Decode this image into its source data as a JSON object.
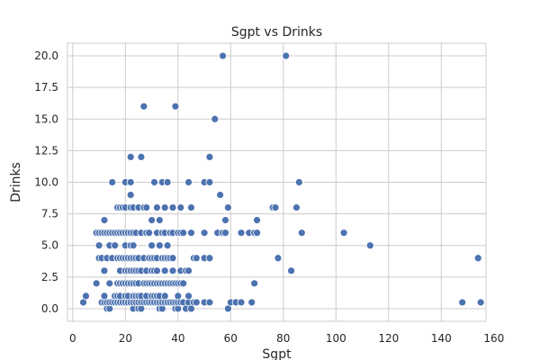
{
  "chart_data": {
    "type": "scatter",
    "title": "Sgpt vs Drinks",
    "xlabel": "Sgpt",
    "ylabel": "Drinks",
    "xlim": [
      -2,
      157
    ],
    "ylim": [
      -1,
      21
    ],
    "xticks": [
      0,
      20,
      40,
      60,
      80,
      100,
      120,
      140,
      160
    ],
    "xtick_labels": [
      "0",
      "20",
      "40",
      "60",
      "80",
      "100",
      "120",
      "140",
      "160"
    ],
    "yticks": [
      0,
      2.5,
      5,
      7.5,
      10,
      12.5,
      15,
      17.5,
      20
    ],
    "ytick_labels": [
      "0.0",
      "2.5",
      "5.0",
      "7.5",
      "10.0",
      "12.5",
      "15.0",
      "17.5",
      "20.0"
    ],
    "grid": true,
    "marker_color": "#4c72b0",
    "points": [
      [
        4,
        0.5
      ],
      [
        5,
        1
      ],
      [
        9,
        2
      ],
      [
        9,
        6
      ],
      [
        10,
        4
      ],
      [
        10,
        5
      ],
      [
        10,
        6
      ],
      [
        11,
        0.5
      ],
      [
        11,
        4
      ],
      [
        11,
        6
      ],
      [
        12,
        0.5
      ],
      [
        12,
        1
      ],
      [
        12,
        3
      ],
      [
        12,
        6
      ],
      [
        12,
        7
      ],
      [
        13,
        0
      ],
      [
        13,
        0.5
      ],
      [
        13,
        4
      ],
      [
        13,
        6
      ],
      [
        14,
        0
      ],
      [
        14,
        0.5
      ],
      [
        14,
        2
      ],
      [
        14,
        5
      ],
      [
        14,
        6
      ],
      [
        15,
        0.5
      ],
      [
        15,
        4
      ],
      [
        15,
        6
      ],
      [
        15,
        10
      ],
      [
        16,
        0.5
      ],
      [
        16,
        1
      ],
      [
        16,
        5
      ],
      [
        16,
        6
      ],
      [
        17,
        0.5
      ],
      [
        17,
        1
      ],
      [
        17,
        2
      ],
      [
        17,
        4
      ],
      [
        17,
        6
      ],
      [
        17,
        8
      ],
      [
        18,
        0.5
      ],
      [
        18,
        1
      ],
      [
        18,
        2
      ],
      [
        18,
        3
      ],
      [
        18,
        4
      ],
      [
        18,
        6
      ],
      [
        18,
        8
      ],
      [
        19,
        0.5
      ],
      [
        19,
        2
      ],
      [
        19,
        4
      ],
      [
        19,
        6
      ],
      [
        19,
        8
      ],
      [
        20,
        0.5
      ],
      [
        20,
        1
      ],
      [
        20,
        2
      ],
      [
        20,
        3
      ],
      [
        20,
        4
      ],
      [
        20,
        5
      ],
      [
        20,
        6
      ],
      [
        20,
        8
      ],
      [
        20,
        10
      ],
      [
        21,
        0.5
      ],
      [
        21,
        1
      ],
      [
        21,
        2
      ],
      [
        21,
        3
      ],
      [
        21,
        4
      ],
      [
        21,
        6
      ],
      [
        22,
        0.5
      ],
      [
        22,
        2
      ],
      [
        22,
        3
      ],
      [
        22,
        4
      ],
      [
        22,
        5
      ],
      [
        22,
        6
      ],
      [
        22,
        8
      ],
      [
        22,
        9
      ],
      [
        22,
        10
      ],
      [
        22,
        12
      ],
      [
        23,
        0
      ],
      [
        23,
        0.5
      ],
      [
        23,
        1
      ],
      [
        23,
        2
      ],
      [
        23,
        3
      ],
      [
        23,
        4
      ],
      [
        23,
        5
      ],
      [
        23,
        6
      ],
      [
        23,
        8
      ],
      [
        24,
        0.5
      ],
      [
        24,
        1
      ],
      [
        24,
        2
      ],
      [
        24,
        3
      ],
      [
        24,
        4
      ],
      [
        24,
        6
      ],
      [
        25,
        0
      ],
      [
        25,
        0.5
      ],
      [
        25,
        1
      ],
      [
        25,
        2
      ],
      [
        25,
        3
      ],
      [
        25,
        4
      ],
      [
        25,
        8
      ],
      [
        26,
        0
      ],
      [
        26,
        0.5
      ],
      [
        26,
        1
      ],
      [
        26,
        3
      ],
      [
        26,
        6
      ],
      [
        26,
        12
      ],
      [
        27,
        0.5
      ],
      [
        27,
        2
      ],
      [
        27,
        4
      ],
      [
        27,
        8
      ],
      [
        27,
        16
      ],
      [
        28,
        0.5
      ],
      [
        28,
        1
      ],
      [
        28,
        2
      ],
      [
        28,
        3
      ],
      [
        28,
        6
      ],
      [
        28,
        8
      ],
      [
        29,
        0.5
      ],
      [
        29,
        2
      ],
      [
        29,
        4
      ],
      [
        29,
        6
      ],
      [
        30,
        0.5
      ],
      [
        30,
        1
      ],
      [
        30,
        2
      ],
      [
        30,
        3
      ],
      [
        30,
        4
      ],
      [
        30,
        5
      ],
      [
        30,
        7
      ],
      [
        31,
        0.5
      ],
      [
        31,
        1
      ],
      [
        31,
        2
      ],
      [
        31,
        3
      ],
      [
        31,
        4
      ],
      [
        31,
        10
      ],
      [
        32,
        0.5
      ],
      [
        32,
        1
      ],
      [
        32,
        2
      ],
      [
        32,
        3
      ],
      [
        32,
        4
      ],
      [
        32,
        6
      ],
      [
        32,
        8
      ],
      [
        33,
        0
      ],
      [
        33,
        0.5
      ],
      [
        33,
        1
      ],
      [
        33,
        2
      ],
      [
        33,
        5
      ],
      [
        33,
        7
      ],
      [
        34,
        0
      ],
      [
        34,
        0.5
      ],
      [
        34,
        2
      ],
      [
        34,
        4
      ],
      [
        34,
        6
      ],
      [
        34,
        10
      ],
      [
        35,
        0.5
      ],
      [
        35,
        1
      ],
      [
        35,
        2
      ],
      [
        35,
        3
      ],
      [
        35,
        4
      ],
      [
        35,
        6
      ],
      [
        35,
        8
      ],
      [
        36,
        0.5
      ],
      [
        36,
        2
      ],
      [
        36,
        4
      ],
      [
        36,
        5
      ],
      [
        36,
        10
      ],
      [
        37,
        0.5
      ],
      [
        37,
        2
      ],
      [
        37,
        4
      ],
      [
        37,
        6
      ],
      [
        38,
        0.5
      ],
      [
        38,
        2
      ],
      [
        38,
        3
      ],
      [
        38,
        4
      ],
      [
        38,
        6
      ],
      [
        38,
        8
      ],
      [
        39,
        0
      ],
      [
        39,
        0.5
      ],
      [
        39,
        2
      ],
      [
        39,
        16
      ],
      [
        40,
        0
      ],
      [
        40,
        0.5
      ],
      [
        40,
        1
      ],
      [
        40,
        2
      ],
      [
        40,
        6
      ],
      [
        41,
        0.5
      ],
      [
        41,
        2
      ],
      [
        41,
        3
      ],
      [
        41,
        6
      ],
      [
        41,
        8
      ],
      [
        42,
        0.5
      ],
      [
        42,
        2
      ],
      [
        42,
        6
      ],
      [
        43,
        0
      ],
      [
        43,
        3
      ],
      [
        44,
        0.5
      ],
      [
        44,
        1
      ],
      [
        44,
        3
      ],
      [
        44,
        10
      ],
      [
        45,
        0
      ],
      [
        45,
        6
      ],
      [
        45,
        8
      ],
      [
        46,
        0.5
      ],
      [
        46,
        4
      ],
      [
        47,
        0.5
      ],
      [
        47,
        4
      ],
      [
        50,
        0.5
      ],
      [
        50,
        4
      ],
      [
        50,
        6
      ],
      [
        50,
        10
      ],
      [
        52,
        0.5
      ],
      [
        52,
        4
      ],
      [
        52,
        10
      ],
      [
        52,
        12
      ],
      [
        54,
        15
      ],
      [
        55,
        6
      ],
      [
        56,
        9
      ],
      [
        57,
        6
      ],
      [
        57,
        20
      ],
      [
        58,
        6
      ],
      [
        58,
        7
      ],
      [
        59,
        0
      ],
      [
        59,
        8
      ],
      [
        60,
        0.5
      ],
      [
        62,
        0.5
      ],
      [
        64,
        0.5
      ],
      [
        64,
        6
      ],
      [
        67,
        6
      ],
      [
        68,
        0.5
      ],
      [
        69,
        2
      ],
      [
        69,
        6
      ],
      [
        70,
        6
      ],
      [
        70,
        7
      ],
      [
        76,
        8
      ],
      [
        77,
        8
      ],
      [
        78,
        4
      ],
      [
        81,
        20
      ],
      [
        83,
        3
      ],
      [
        85,
        8
      ],
      [
        86,
        10
      ],
      [
        87,
        6
      ],
      [
        103,
        6
      ],
      [
        113,
        5
      ],
      [
        148,
        0.5
      ],
      [
        154,
        4
      ],
      [
        155,
        0.5
      ]
    ]
  }
}
